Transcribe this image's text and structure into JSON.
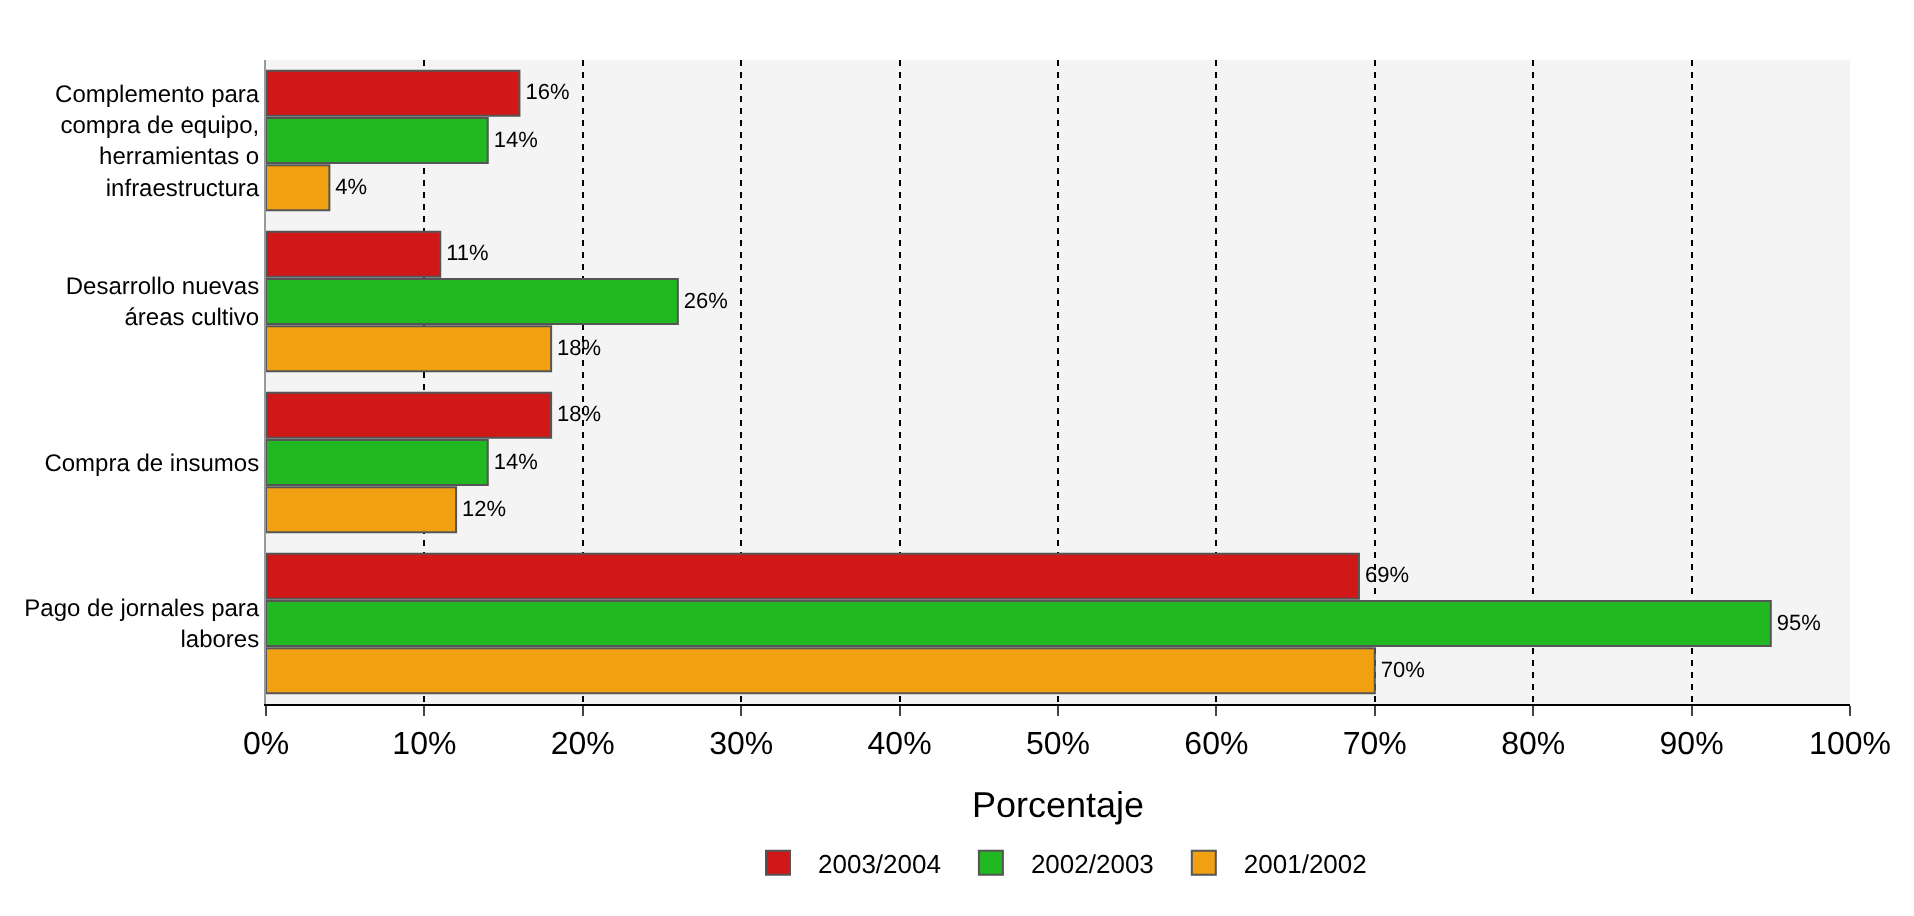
{
  "chart_data": {
    "type": "bar",
    "orientation": "horizontal",
    "xlabel": "Porcentaje",
    "categories": [
      "Complemento para compra de equipo, herramientas o infraestructura",
      "Desarrollo nuevas áreas cultivo",
      "Compra de insumos",
      "Pago de jornales para labores"
    ],
    "series": [
      {
        "name": "2003/2004",
        "color": "#d01818",
        "values": [
          16,
          11,
          18,
          69
        ],
        "value_labels": [
          "16%",
          "11%",
          "18%",
          "69%"
        ]
      },
      {
        "name": "2002/2003",
        "color": "#22b822",
        "values": [
          14,
          26,
          14,
          95
        ],
        "value_labels": [
          "14%",
          "26%",
          "14%",
          "95%"
        ]
      },
      {
        "name": "2001/2002",
        "color": "#f0a010",
        "values": [
          4,
          18,
          12,
          70
        ],
        "value_labels": [
          "4%",
          "18%",
          "12%",
          "70%"
        ]
      }
    ],
    "xlim": [
      0,
      100
    ],
    "xticks": [
      {
        "value": 0,
        "label": "0%"
      },
      {
        "value": 10,
        "label": "10%"
      },
      {
        "value": 20,
        "label": "20%"
      },
      {
        "value": 30,
        "label": "30%"
      },
      {
        "value": 40,
        "label": "40%"
      },
      {
        "value": 50,
        "label": "50%"
      },
      {
        "value": 60,
        "label": "60%"
      },
      {
        "value": 70,
        "label": "70%"
      },
      {
        "value": 80,
        "label": "80%"
      },
      {
        "value": 90,
        "label": "90%"
      },
      {
        "value": 100,
        "label": "100%"
      }
    ],
    "grid": "x",
    "legend": "bottom"
  }
}
